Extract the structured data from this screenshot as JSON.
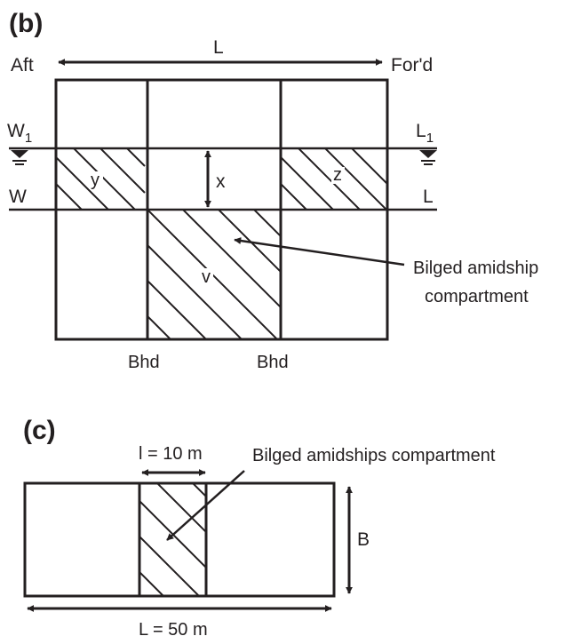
{
  "panel_b": {
    "label": "(b)",
    "length_label": "L",
    "aft_label": "Aft",
    "ford_label": "For'd",
    "w1_label": "W",
    "w1_sub": "1",
    "l1_label": "L",
    "l1_sub": "1",
    "w_label": "W",
    "l_label": "L",
    "x_label": "x",
    "y_label": "y",
    "z_label": "z",
    "v_label": "v",
    "callout_line1": "Bilged amidship",
    "callout_line2": "compartment",
    "bhd_left": "Bhd",
    "bhd_right": "Bhd"
  },
  "panel_c": {
    "label": "(c)",
    "compartment_length": "l = 10 m",
    "callout": "Bilged amidships compartment",
    "breadth_label": "B",
    "length_label": "L = 50 m"
  }
}
